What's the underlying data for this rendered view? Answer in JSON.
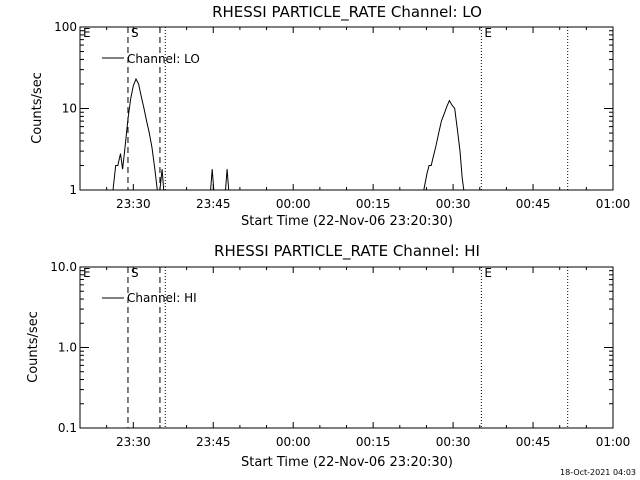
{
  "footer_timestamp": "18-Oct-2021 04:03",
  "chart_data": [
    {
      "type": "line",
      "title": "RHESSI PARTICLE_RATE Channel: LO",
      "xlabel": "Start Time (22-Nov-06 23:20:30)",
      "ylabel": "Counts/sec",
      "yscale": "log",
      "ylim": [
        1,
        100
      ],
      "ytick_values": [
        1,
        10,
        100
      ],
      "ytick_labels": [
        "1",
        "10",
        "100"
      ],
      "x_unit": "minutes after 23:20:30",
      "xlim": [
        -0.5,
        99.5
      ],
      "xtick_values": [
        9.5,
        24.5,
        39.5,
        54.5,
        69.5,
        84.5,
        99.5
      ],
      "xtick_labels": [
        "23:30",
        "23:45",
        "00:00",
        "00:15",
        "00:30",
        "00:45",
        "01:00"
      ],
      "legend": {
        "label": "Channel: LO",
        "placement": "top-left"
      },
      "markers": [
        {
          "label": "E",
          "x": -0.5,
          "style": "none"
        },
        {
          "label": "S",
          "x": 8.5,
          "style": "dashed"
        },
        {
          "label": "",
          "x": 14.5,
          "style": "dashed"
        },
        {
          "label": "",
          "x": 15.5,
          "style": "dotted"
        },
        {
          "label": "E",
          "x": 74.8,
          "style": "dotted"
        },
        {
          "label": "",
          "x": 91.0,
          "style": "dotted"
        }
      ],
      "series": [
        {
          "name": "Channel: LO",
          "segments": [
            [
              [
                5.7,
                1
              ],
              [
                6.2,
                2
              ],
              [
                6.6,
                2
              ],
              [
                7.1,
                2.8
              ],
              [
                7.5,
                1.8
              ],
              [
                8.0,
                3.6
              ],
              [
                8.5,
                7.5
              ],
              [
                9.0,
                13
              ],
              [
                9.5,
                19
              ],
              [
                10.0,
                23
              ],
              [
                10.5,
                20
              ],
              [
                11.0,
                14
              ],
              [
                11.5,
                10
              ],
              [
                12.0,
                7
              ],
              [
                12.5,
                5
              ],
              [
                13.0,
                3.3
              ],
              [
                13.5,
                1.9
              ],
              [
                14.0,
                1
              ],
              [
                14.5,
                1
              ],
              [
                14.9,
                1.8
              ],
              [
                15.2,
                1
              ]
            ],
            [
              [
                24.0,
                1
              ],
              [
                24.3,
                1.8
              ],
              [
                24.6,
                1
              ]
            ],
            [
              [
                26.8,
                1
              ],
              [
                27.1,
                1.8
              ],
              [
                27.4,
                1
              ]
            ],
            [
              [
                64.0,
                1
              ],
              [
                64.6,
                1.6
              ],
              [
                65.0,
                2
              ],
              [
                65.4,
                2
              ],
              [
                65.8,
                2.6
              ],
              [
                66.3,
                3.5
              ],
              [
                66.8,
                5
              ],
              [
                67.3,
                7
              ],
              [
                67.8,
                8.5
              ],
              [
                68.3,
                10.5
              ],
              [
                68.8,
                12.5
              ],
              [
                69.3,
                11
              ],
              [
                69.8,
                10
              ],
              [
                70.3,
                5.5
              ],
              [
                70.8,
                3
              ],
              [
                71.2,
                1.4
              ],
              [
                71.5,
                1
              ]
            ]
          ]
        }
      ]
    },
    {
      "type": "line",
      "title": "RHESSI PARTICLE_RATE Channel: HI",
      "xlabel": "Start Time (22-Nov-06 23:20:30)",
      "ylabel": "Counts/sec",
      "yscale": "log",
      "ylim": [
        0.1,
        10
      ],
      "ytick_values": [
        0.1,
        1,
        10
      ],
      "ytick_labels": [
        "0.1",
        "1.0",
        "10.0"
      ],
      "x_unit": "minutes after 23:20:30",
      "xlim": [
        -0.5,
        99.5
      ],
      "xtick_values": [
        9.5,
        24.5,
        39.5,
        54.5,
        69.5,
        84.5,
        99.5
      ],
      "xtick_labels": [
        "23:30",
        "23:45",
        "00:00",
        "00:15",
        "00:30",
        "00:45",
        "01:00"
      ],
      "legend": {
        "label": "Channel: HI",
        "placement": "top-left"
      },
      "markers": [
        {
          "label": "E",
          "x": -0.5,
          "style": "none"
        },
        {
          "label": "S",
          "x": 8.5,
          "style": "dashed"
        },
        {
          "label": "",
          "x": 14.5,
          "style": "dashed"
        },
        {
          "label": "",
          "x": 15.5,
          "style": "dotted"
        },
        {
          "label": "E",
          "x": 74.8,
          "style": "dotted"
        },
        {
          "label": "",
          "x": 91.0,
          "style": "dotted"
        }
      ],
      "series": [
        {
          "name": "Channel: HI",
          "segments": []
        }
      ]
    }
  ]
}
